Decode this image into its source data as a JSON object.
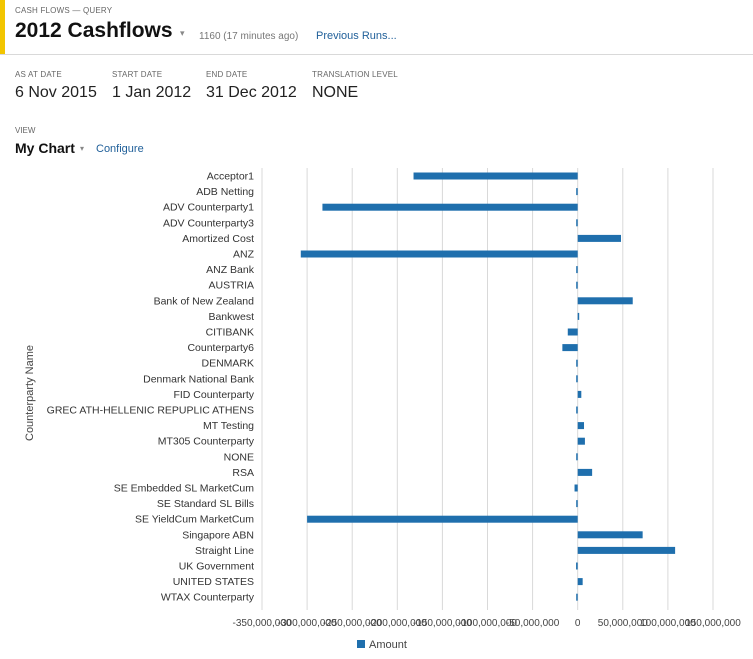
{
  "header": {
    "breadcrumb": "CASH FLOWS — QUERY",
    "title": "2012 Cashflows",
    "caret": "▾",
    "run_info": "1160 (17 minutes ago)",
    "previous_runs": "Previous Runs..."
  },
  "params": {
    "as_at_label": "AS AT DATE",
    "as_at_value": "6 Nov 2015",
    "start_label": "START DATE",
    "start_value": "1 Jan 2012",
    "end_label": "END DATE",
    "end_value": "31 Dec 2012",
    "translation_label": "TRANSLATION LEVEL",
    "translation_value": "NONE"
  },
  "view": {
    "label": "VIEW",
    "name": "My Chart",
    "caret": "▾",
    "configure": "Configure"
  },
  "colors": {
    "accent": "#f2c500",
    "bar": "#1f6fad",
    "link": "#1f5f99",
    "grid": "#d9d9d9"
  },
  "chart_data": {
    "type": "bar",
    "orientation": "horizontal",
    "ylabel": "Counterparty Name",
    "xlim": [
      -350000000,
      150000000
    ],
    "xticks": [
      -350000000,
      -300000000,
      -250000000,
      -200000000,
      -150000000,
      -100000000,
      -50000000,
      0,
      50000000,
      100000000,
      150000000
    ],
    "xtick_labels": [
      "-350,000,000",
      "-300,000,000",
      "-250,000,000",
      "-200,000,000",
      "-150,000,000",
      "-100,000,000",
      "-50,000,000",
      "0",
      "50,000,000",
      "100,000,000",
      "150,000,000"
    ],
    "grid": true,
    "legend_position": "bottom",
    "categories": [
      "Acceptor1",
      "ADB Netting",
      "ADV Counterparty1",
      "ADV Counterparty3",
      "Amortized Cost",
      "ANZ",
      "ANZ Bank",
      "AUSTRIA",
      "Bank of New Zealand",
      "Bankwest",
      "CITIBANK",
      "Counterparty6",
      "DENMARK",
      "Denmark National Bank",
      "FID Counterparty",
      "GREC ATH-HELLENIC REPUPLIC ATHENS",
      "MT Testing",
      "MT305 Counterparty",
      "NONE",
      "RSA",
      "SE Embedded SL MarketCum",
      "SE Standard SL Bills",
      "SE YieldCum MarketCum",
      "Singapore ABN",
      "Straight Line",
      "UK Government",
      "UNITED STATES",
      "WTAX Counterparty"
    ],
    "series": [
      {
        "name": "Amount",
        "values": [
          -182000000,
          -500000,
          -283000000,
          -300000,
          48000000,
          -307000000,
          -600000,
          -1000000,
          61000000,
          1200000,
          -11000000,
          -17000000,
          -500000,
          -1400000,
          4000000,
          -500000,
          7000000,
          8000000,
          -500000,
          16000000,
          -3500000,
          -500000,
          -300000000,
          72000000,
          108000000,
          -1800000,
          5500000,
          -1500000
        ]
      }
    ]
  }
}
